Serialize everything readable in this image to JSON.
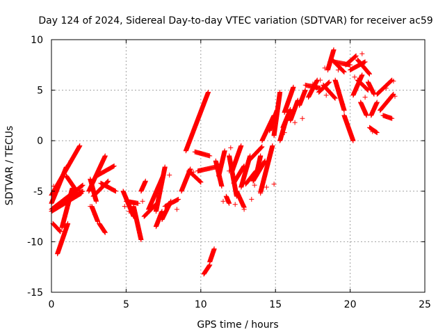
{
  "chart_data": {
    "type": "scatter",
    "title": "Day 124 of 2024, Sidereal Day-to-day VTEC variation (SDTVAR) for receiver ac59",
    "xlabel": "GPS time / hours",
    "ylabel": "SDTVAR / TECUs",
    "xlim": [
      0,
      25
    ],
    "ylim": [
      -15,
      10
    ],
    "x_ticks": [
      0,
      5,
      10,
      15,
      20,
      25
    ],
    "y_ticks": [
      -15,
      -10,
      -5,
      0,
      5,
      10
    ],
    "x_tick_labels": [
      "0",
      "5",
      "10",
      "15",
      "20",
      "25"
    ],
    "y_tick_labels": [
      "-15",
      "-10",
      "-5",
      "0",
      "5",
      "10"
    ],
    "grid": true,
    "marker": "plus",
    "color": "#ff0000",
    "segments": [
      {
        "from": [
          0.0,
          -5.4
        ],
        "to": [
          1.9,
          -0.5
        ]
      },
      {
        "from": [
          0.0,
          -6.2
        ],
        "to": [
          1.0,
          -2.6
        ]
      },
      {
        "from": [
          0.0,
          -6.8
        ],
        "to": [
          2.1,
          -4.4
        ]
      },
      {
        "from": [
          0.0,
          -7.0
        ],
        "to": [
          2.0,
          -5.2
        ]
      },
      {
        "from": [
          0.1,
          -8.2
        ],
        "to": [
          0.6,
          -9.0
        ]
      },
      {
        "from": [
          0.4,
          -11.2
        ],
        "to": [
          1.1,
          -8.2
        ]
      },
      {
        "from": [
          0.7,
          -8.6
        ],
        "to": [
          1.4,
          -4.7
        ]
      },
      {
        "from": [
          1.0,
          -3.5
        ],
        "to": [
          1.6,
          -4.8
        ]
      },
      {
        "from": [
          1.2,
          -5.5
        ],
        "to": [
          2.1,
          -5.0
        ]
      },
      {
        "from": [
          2.5,
          -5.0
        ],
        "to": [
          3.6,
          -1.5
        ]
      },
      {
        "from": [
          2.6,
          -3.8
        ],
        "to": [
          3.0,
          -6.0
        ]
      },
      {
        "from": [
          2.7,
          -6.5
        ],
        "to": [
          3.1,
          -8.0
        ]
      },
      {
        "from": [
          3.0,
          -3.5
        ],
        "to": [
          4.2,
          -2.5
        ]
      },
      {
        "from": [
          2.8,
          -5.5
        ],
        "to": [
          3.8,
          -4.0
        ]
      },
      {
        "from": [
          3.2,
          -8.2
        ],
        "to": [
          3.6,
          -9.1
        ]
      },
      {
        "from": [
          3.3,
          -4.2
        ],
        "to": [
          4.3,
          -5.0
        ]
      },
      {
        "from": [
          4.8,
          -5.0
        ],
        "to": [
          5.5,
          -7.5
        ]
      },
      {
        "from": [
          5.0,
          -6.0
        ],
        "to": [
          5.8,
          -6.2
        ]
      },
      {
        "from": [
          5.5,
          -6.5
        ],
        "to": [
          6.0,
          -9.8
        ]
      },
      {
        "from": [
          6.0,
          -5.0
        ],
        "to": [
          6.3,
          -4.0
        ]
      },
      {
        "from": [
          6.2,
          -7.5
        ],
        "to": [
          7.0,
          -6.3
        ]
      },
      {
        "from": [
          6.5,
          -6.8
        ],
        "to": [
          7.5,
          -3.4
        ]
      },
      {
        "from": [
          7.0,
          -7.0
        ],
        "to": [
          7.6,
          -2.6
        ]
      },
      {
        "from": [
          7.4,
          -7.8
        ],
        "to": [
          8.0,
          -6.0
        ]
      },
      {
        "from": [
          7.6,
          -6.5
        ],
        "to": [
          8.5,
          -5.8
        ]
      },
      {
        "from": [
          7.0,
          -8.5
        ],
        "to": [
          7.4,
          -7.0
        ]
      },
      {
        "from": [
          8.7,
          -5.0
        ],
        "to": [
          9.3,
          -2.8
        ]
      },
      {
        "from": [
          9.2,
          -3.0
        ],
        "to": [
          10.0,
          -4.1
        ]
      },
      {
        "from": [
          9.0,
          -1.0
        ],
        "to": [
          10.5,
          4.8
        ]
      },
      {
        "from": [
          9.6,
          -1.1
        ],
        "to": [
          10.6,
          -1.5
        ]
      },
      {
        "from": [
          9.8,
          -3.0
        ],
        "to": [
          11.0,
          -2.6
        ]
      },
      {
        "from": [
          10.2,
          -13.2
        ],
        "to": [
          10.6,
          -12.3
        ]
      },
      {
        "from": [
          10.6,
          -12.0
        ],
        "to": [
          10.9,
          -10.7
        ]
      },
      {
        "from": [
          11.0,
          -2.0
        ],
        "to": [
          11.4,
          -4.5
        ]
      },
      {
        "from": [
          11.2,
          -3.5
        ],
        "to": [
          11.6,
          -1.0
        ]
      },
      {
        "from": [
          11.7,
          -5.5
        ],
        "to": [
          11.9,
          -6.2
        ]
      },
      {
        "from": [
          11.9,
          -1.5
        ],
        "to": [
          12.4,
          -5.5
        ]
      },
      {
        "from": [
          12.1,
          -3.0
        ],
        "to": [
          12.7,
          -0.5
        ]
      },
      {
        "from": [
          12.2,
          -4.2
        ],
        "to": [
          12.9,
          -2.5
        ]
      },
      {
        "from": [
          12.4,
          -5.0
        ],
        "to": [
          12.9,
          -6.6
        ]
      },
      {
        "from": [
          12.7,
          -4.6
        ],
        "to": [
          13.3,
          -1.5
        ]
      },
      {
        "from": [
          13.0,
          -4.3
        ],
        "to": [
          13.7,
          -3.0
        ]
      },
      {
        "from": [
          13.2,
          -2.0
        ],
        "to": [
          14.1,
          -0.6
        ]
      },
      {
        "from": [
          13.5,
          -4.0
        ],
        "to": [
          14.3,
          -2.0
        ]
      },
      {
        "from": [
          13.7,
          -3.5
        ],
        "to": [
          14.0,
          -1.5
        ]
      },
      {
        "from": [
          14.0,
          -5.1
        ],
        "to": [
          14.8,
          -0.5
        ]
      },
      {
        "from": [
          14.1,
          0.0
        ],
        "to": [
          14.9,
          2.5
        ]
      },
      {
        "from": [
          14.6,
          1.0
        ],
        "to": [
          15.1,
          3.0
        ]
      },
      {
        "from": [
          14.9,
          0.5
        ],
        "to": [
          15.3,
          4.8
        ]
      },
      {
        "from": [
          15.3,
          0.0
        ],
        "to": [
          15.7,
          2.0
        ]
      },
      {
        "from": [
          15.5,
          1.3
        ],
        "to": [
          16.0,
          3.1
        ]
      },
      {
        "from": [
          15.6,
          2.8
        ],
        "to": [
          16.2,
          5.3
        ]
      },
      {
        "from": [
          16.0,
          2.0
        ],
        "to": [
          16.5,
          4.0
        ]
      },
      {
        "from": [
          16.6,
          3.5
        ],
        "to": [
          17.0,
          5.0
        ]
      },
      {
        "from": [
          17.0,
          5.5
        ],
        "to": [
          18.0,
          5.2
        ]
      },
      {
        "from": [
          17.2,
          4.3
        ],
        "to": [
          17.8,
          6.0
        ]
      },
      {
        "from": [
          17.9,
          4.8
        ],
        "to": [
          18.6,
          5.8
        ]
      },
      {
        "from": [
          18.2,
          5.5
        ],
        "to": [
          19.0,
          4.2
        ]
      },
      {
        "from": [
          18.5,
          7.0
        ],
        "to": [
          18.9,
          9.0
        ]
      },
      {
        "from": [
          18.8,
          8.0
        ],
        "to": [
          19.6,
          6.8
        ]
      },
      {
        "from": [
          18.9,
          7.8
        ],
        "to": [
          20.0,
          7.5
        ]
      },
      {
        "from": [
          19.0,
          6.0
        ],
        "to": [
          19.6,
          3.0
        ]
      },
      {
        "from": [
          19.6,
          2.5
        ],
        "to": [
          20.2,
          0.0
        ]
      },
      {
        "from": [
          19.7,
          7.5
        ],
        "to": [
          20.4,
          8.4
        ]
      },
      {
        "from": [
          20.0,
          7.0
        ],
        "to": [
          21.0,
          7.8
        ]
      },
      {
        "from": [
          20.5,
          8.0
        ],
        "to": [
          21.3,
          6.6
        ]
      },
      {
        "from": [
          20.2,
          4.5
        ],
        "to": [
          20.8,
          6.5
        ]
      },
      {
        "from": [
          20.5,
          6.0
        ],
        "to": [
          21.2,
          5.0
        ]
      },
      {
        "from": [
          20.7,
          3.8
        ],
        "to": [
          21.1,
          2.5
        ]
      },
      {
        "from": [
          21.2,
          5.8
        ],
        "to": [
          21.6,
          4.6
        ]
      },
      {
        "from": [
          21.4,
          2.5
        ],
        "to": [
          21.8,
          3.8
        ]
      },
      {
        "from": [
          21.3,
          1.3
        ],
        "to": [
          21.8,
          0.8
        ]
      },
      {
        "from": [
          21.8,
          4.6
        ],
        "to": [
          22.8,
          6.0
        ]
      },
      {
        "from": [
          22.0,
          3.0
        ],
        "to": [
          22.9,
          4.6
        ]
      },
      {
        "from": [
          22.2,
          2.5
        ],
        "to": [
          22.8,
          2.2
        ]
      }
    ],
    "points": [
      [
        0.15,
        -4.5
      ],
      [
        1.3,
        -2.0
      ],
      [
        2.6,
        -6.5
      ],
      [
        2.9,
        -7.3
      ],
      [
        3.4,
        -4.6
      ],
      [
        4.9,
        -6.5
      ],
      [
        5.2,
        -7.0
      ],
      [
        6.1,
        -6.0
      ],
      [
        7.9,
        -3.4
      ],
      [
        8.4,
        -6.8
      ],
      [
        9.5,
        -3.1
      ],
      [
        10.0,
        -4.1
      ],
      [
        11.3,
        -2.3
      ],
      [
        11.5,
        -6.0
      ],
      [
        11.9,
        -3.0
      ],
      [
        12.3,
        -6.3
      ],
      [
        12.9,
        -6.8
      ],
      [
        13.4,
        -5.8
      ],
      [
        13.6,
        -4.4
      ],
      [
        14.0,
        -5.2
      ],
      [
        14.4,
        -4.6
      ],
      [
        14.9,
        -4.3
      ],
      [
        15.0,
        2.5
      ],
      [
        15.6,
        0.8
      ],
      [
        16.3,
        1.8
      ],
      [
        16.8,
        2.2
      ],
      [
        17.5,
        5.6
      ],
      [
        18.4,
        4.5
      ],
      [
        18.0,
        6.0
      ],
      [
        18.3,
        7.2
      ],
      [
        19.2,
        7.0
      ],
      [
        20.3,
        6.3
      ],
      [
        21.0,
        4.3
      ],
      [
        21.5,
        0.9
      ],
      [
        22.4,
        5.2
      ],
      [
        22.9,
        5.9
      ],
      [
        23.0,
        4.4
      ],
      [
        20.8,
        8.6
      ],
      [
        19.5,
        3.6
      ],
      [
        12.0,
        -0.7
      ]
    ]
  }
}
